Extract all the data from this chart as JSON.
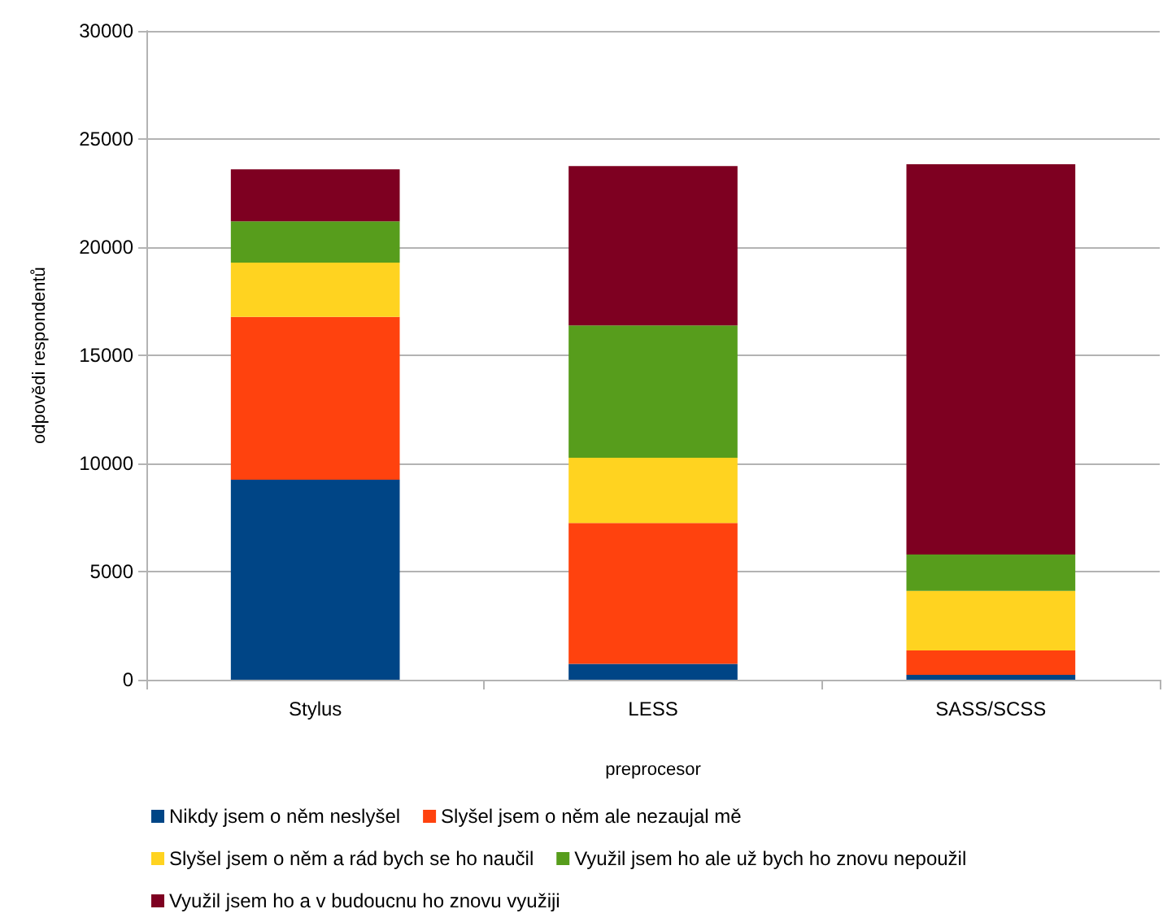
{
  "chart_data": {
    "type": "bar",
    "stacked": true,
    "xlabel": "preprocesor",
    "ylabel": "odpovědi respondentů",
    "categories": [
      "Stylus",
      "LESS",
      "SASS/SCSS"
    ],
    "series": [
      {
        "name": "Nikdy jsem o něm neslyšel",
        "color": "#004586",
        "values": [
          9250,
          730,
          230
        ]
      },
      {
        "name": "Slyšel jsem o něm ale nezaujal mě",
        "color": "#ff420e",
        "values": [
          7530,
          6520,
          1120
        ]
      },
      {
        "name": "Slyšel jsem o něm a rád bych se ho naučil",
        "color": "#ffd320",
        "values": [
          2510,
          3010,
          2760
        ]
      },
      {
        "name": "Využil jsem ho ale už bych ho znovu nepoužil",
        "color": "#579d1c",
        "values": [
          1900,
          6120,
          1680
        ]
      },
      {
        "name": "Využil jsem ho a v budoucnu ho znovu využiji",
        "color": "#7e0021",
        "values": [
          2410,
          7370,
          18040
        ]
      }
    ],
    "ylim": [
      0,
      30000
    ],
    "yticks": [
      0,
      5000,
      10000,
      15000,
      20000,
      25000,
      30000
    ],
    "grid": "y",
    "legend": "bottom"
  }
}
